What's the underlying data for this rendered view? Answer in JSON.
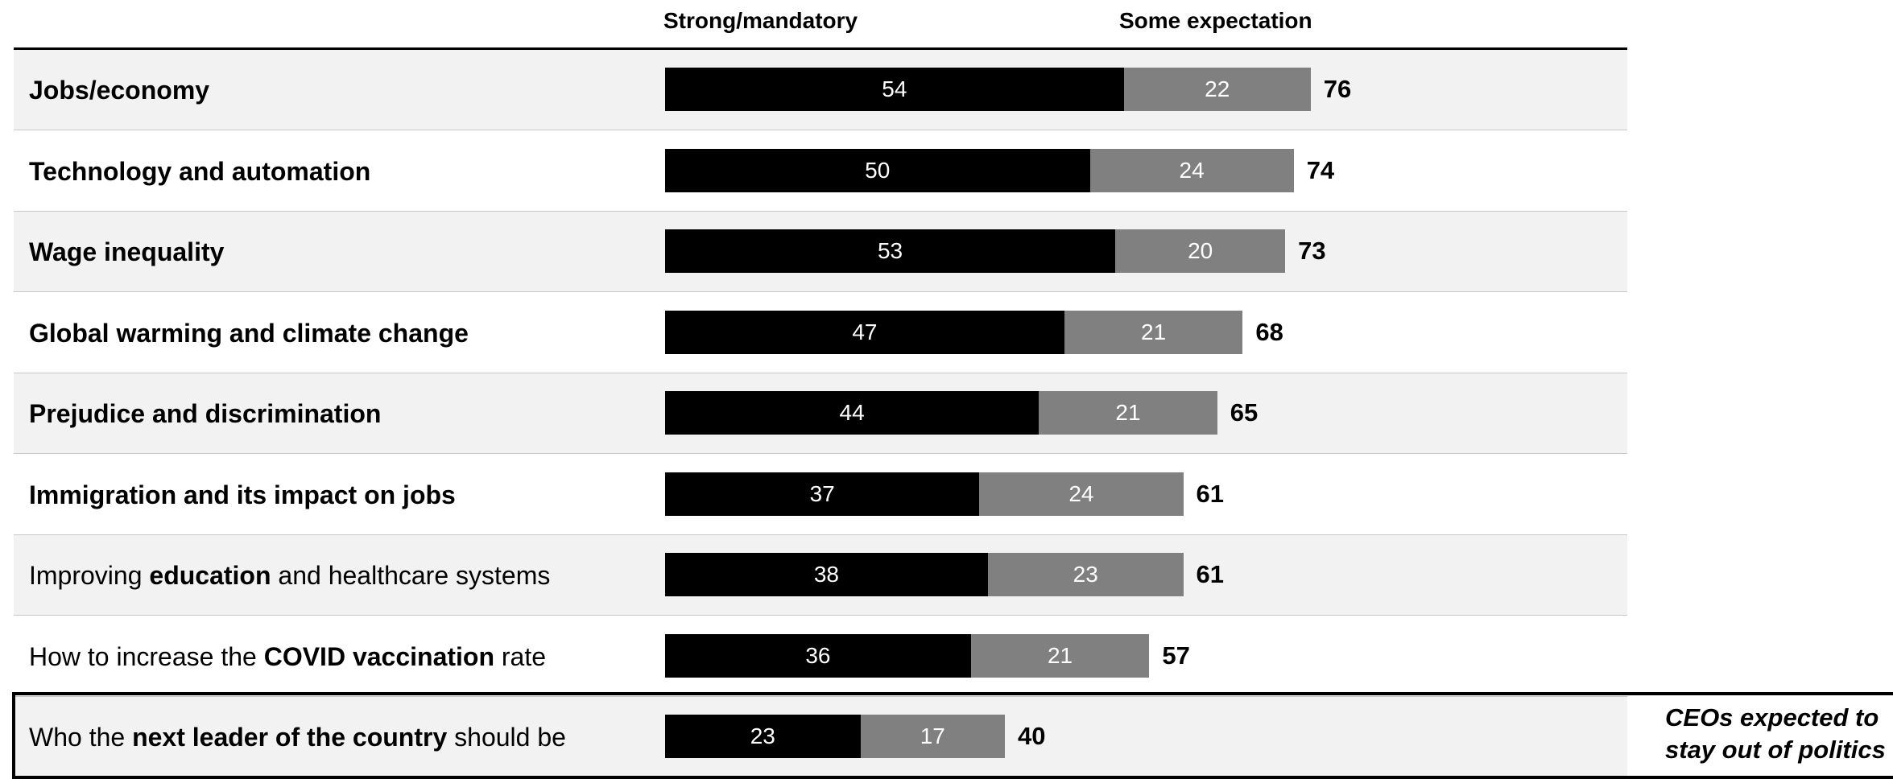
{
  "chart_data": {
    "type": "bar",
    "orientation": "horizontal",
    "stacked": true,
    "legend": [
      "Strong/mandatory",
      "Some expectation"
    ],
    "categories": [
      "Jobs/economy",
      "Technology and automation",
      "Wage inequality",
      "Global warming and climate change",
      "Prejudice and discrimination",
      "Immigration and its impact on jobs",
      "Improving education and healthcare systems",
      "How to increase the COVID vaccination rate",
      "Who the next leader of the country should be"
    ],
    "series": [
      {
        "name": "Strong/mandatory",
        "values": [
          54,
          50,
          53,
          47,
          44,
          37,
          38,
          36,
          23
        ],
        "color": "#000000"
      },
      {
        "name": "Some expectation",
        "values": [
          22,
          24,
          20,
          21,
          21,
          24,
          23,
          21,
          17
        ],
        "color": "#808080"
      }
    ],
    "totals": [
      76,
      74,
      73,
      68,
      65,
      61,
      61,
      57,
      40
    ],
    "annotation": "CEOs expected to stay out of politics",
    "label_parts": [
      [
        {
          "t": "Jobs/economy",
          "b": true
        }
      ],
      [
        {
          "t": "Technology and automation",
          "b": true
        }
      ],
      [
        {
          "t": "Wage inequality",
          "b": true
        }
      ],
      [
        {
          "t": "Global warming and climate change",
          "b": true
        }
      ],
      [
        {
          "t": "Prejudice and discrimination",
          "b": true
        }
      ],
      [
        {
          "t": "Immigration and its impact on jobs",
          "b": true
        }
      ],
      [
        {
          "t": "Improving ",
          "b": false
        },
        {
          "t": "education",
          "b": true
        },
        {
          "t": " and healthcare systems",
          "b": false
        }
      ],
      [
        {
          "t": "How to increase the ",
          "b": false
        },
        {
          "t": "COVID vaccination",
          "b": true
        },
        {
          "t": " rate",
          "b": false
        }
      ],
      [
        {
          "t": "Who the ",
          "b": false
        },
        {
          "t": "next leader of the country",
          "b": true
        },
        {
          "t": " should be",
          "b": false
        }
      ]
    ]
  },
  "legend": {
    "strong_label": "Strong/mandatory",
    "some_label": "Some expectation"
  },
  "note": {
    "line1": "CEOs expected to",
    "line2": "stay out of politics"
  }
}
